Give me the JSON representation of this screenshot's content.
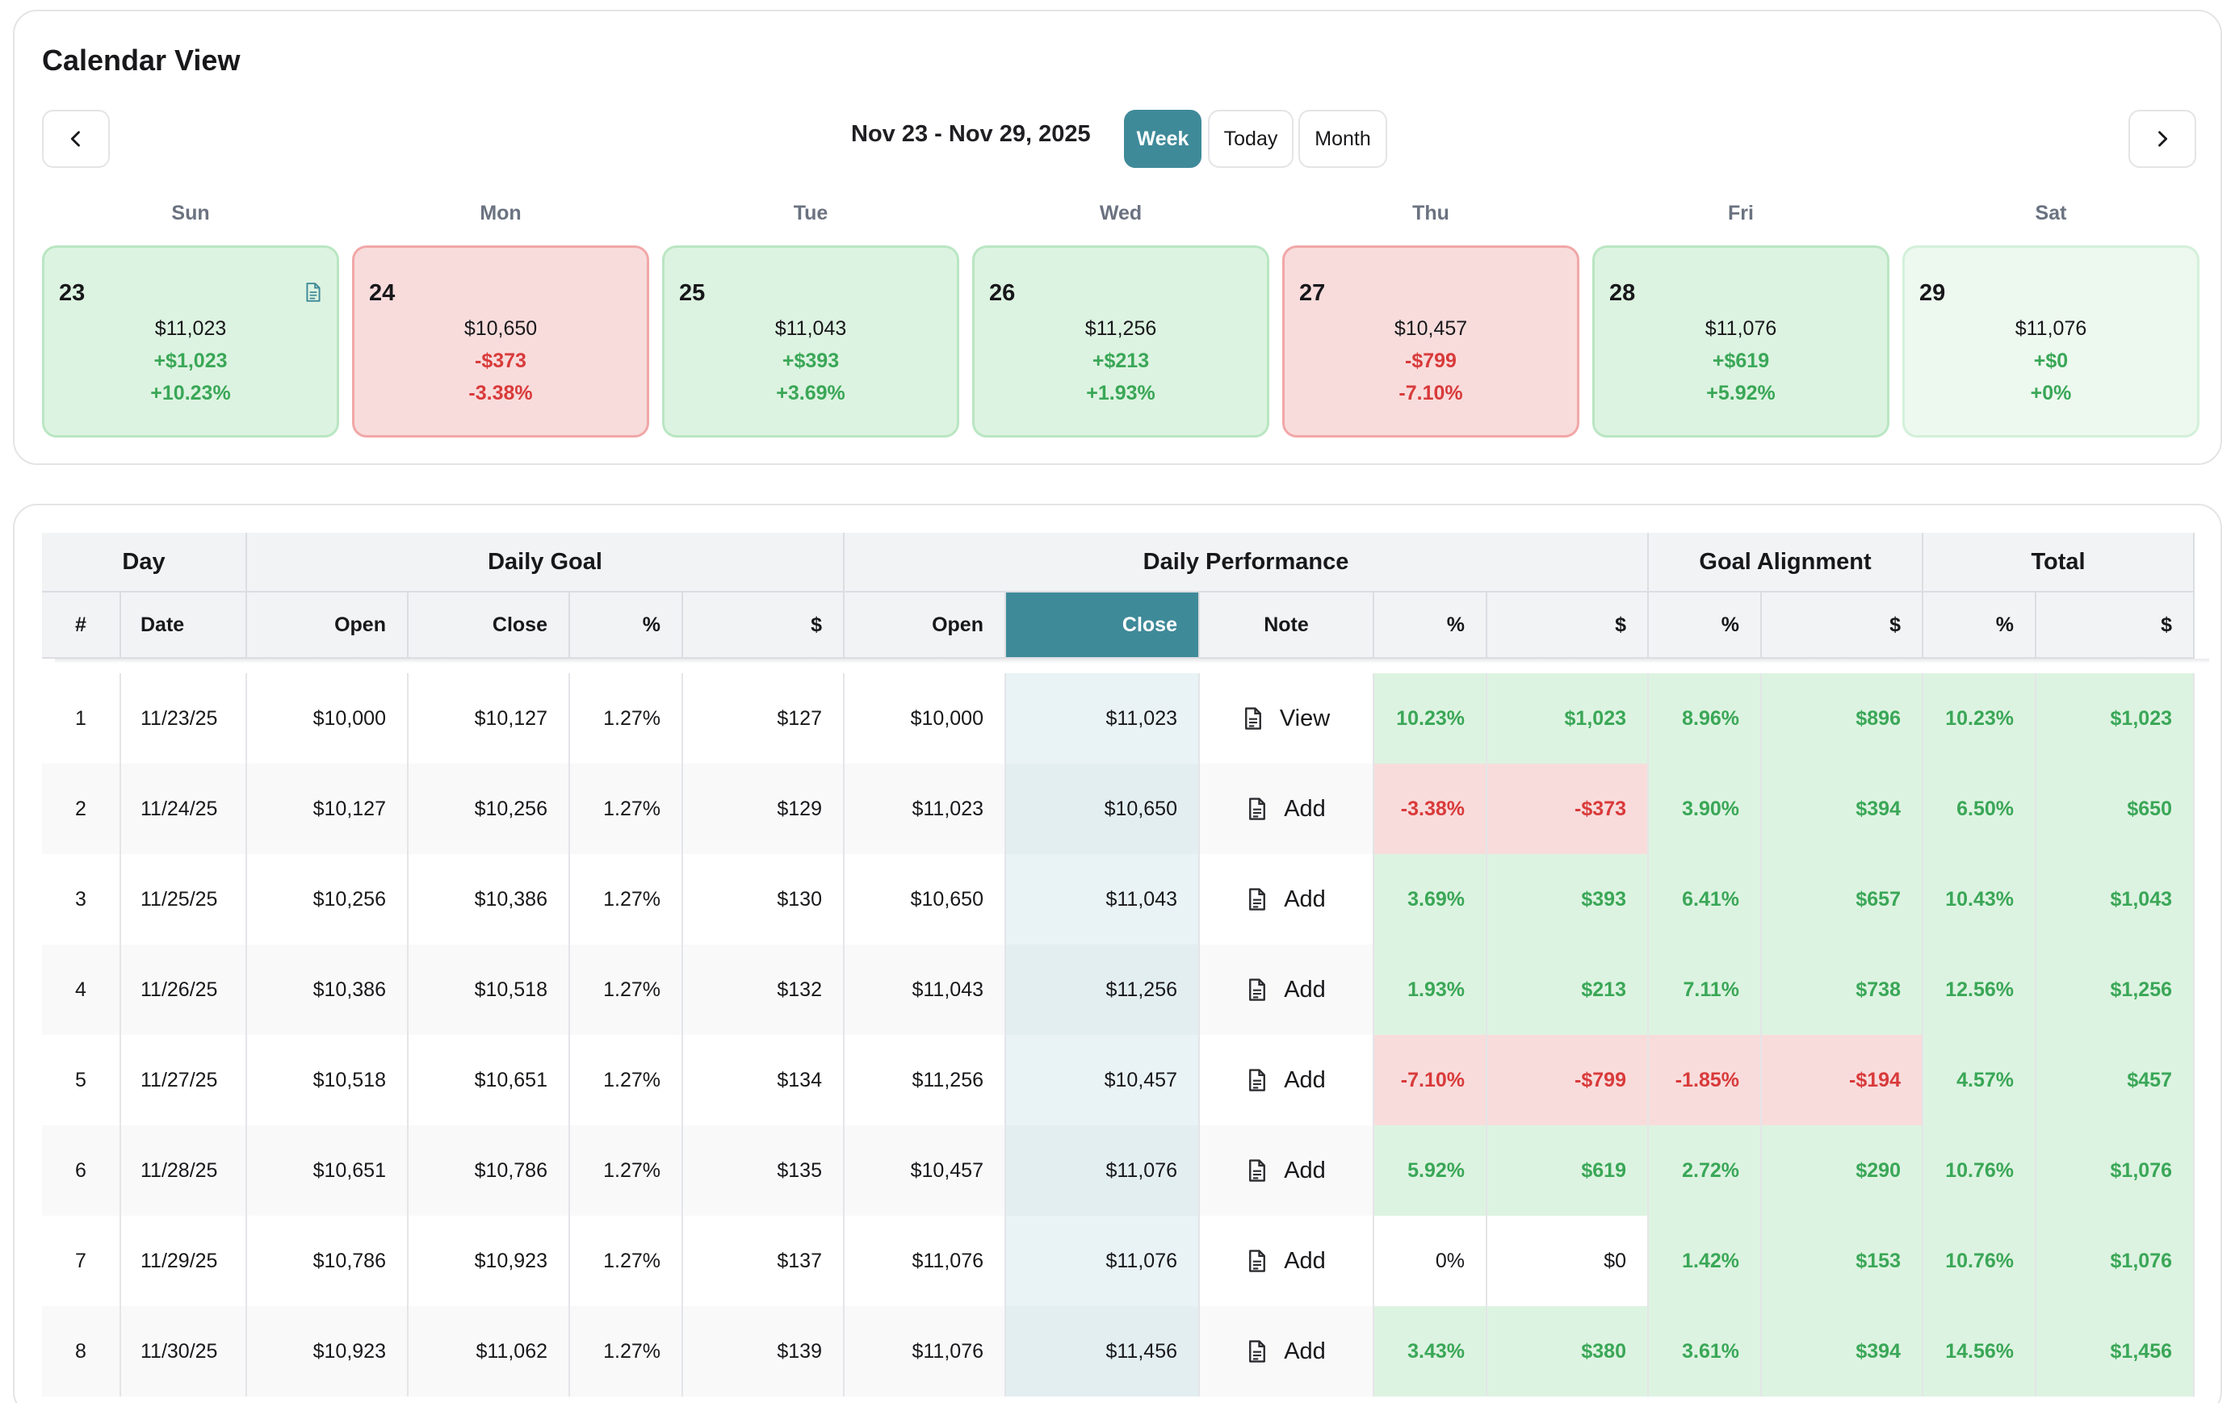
{
  "calendar": {
    "title": "Calendar View",
    "range_label": "Nov 23 - Nov 29, 2025",
    "view_buttons": {
      "week": "Week",
      "today": "Today",
      "month": "Month"
    },
    "active_view": "Week",
    "prev_icon": "chevron-left-icon",
    "next_icon": "chevron-right-icon",
    "weekdays": [
      "Sun",
      "Mon",
      "Tue",
      "Wed",
      "Thu",
      "Fri",
      "Sat"
    ],
    "days": [
      {
        "num": "23",
        "close": "$11,023",
        "change": "+$1,023",
        "pct": "+10.23%",
        "status": "pos",
        "has_note": true
      },
      {
        "num": "24",
        "close": "$10,650",
        "change": "-$373",
        "pct": "-3.38%",
        "status": "neg",
        "has_note": false
      },
      {
        "num": "25",
        "close": "$11,043",
        "change": "+$393",
        "pct": "+3.69%",
        "status": "pos",
        "has_note": false
      },
      {
        "num": "26",
        "close": "$11,256",
        "change": "+$213",
        "pct": "+1.93%",
        "status": "pos",
        "has_note": false
      },
      {
        "num": "27",
        "close": "$10,457",
        "change": "-$799",
        "pct": "-7.10%",
        "status": "neg",
        "has_note": false
      },
      {
        "num": "28",
        "close": "$11,076",
        "change": "+$619",
        "pct": "+5.92%",
        "status": "pos",
        "has_note": false
      },
      {
        "num": "29",
        "close": "$11,076",
        "change": "+$0",
        "pct": "+0%",
        "status": "zero",
        "has_note": false
      }
    ]
  },
  "table": {
    "group_headers": [
      "Day",
      "Daily Goal",
      "Daily Performance",
      "Goal Alignment",
      "Total"
    ],
    "column_headers": [
      "#",
      "Date",
      "Open",
      "Close",
      "%",
      "$",
      "Open",
      "Close",
      "Note",
      "%",
      "$",
      "%",
      "$",
      "%",
      "$"
    ],
    "rows": [
      {
        "n": "1",
        "date": "11/23/25",
        "g_open": "$10,000",
        "g_close": "$10,127",
        "g_pct": "1.27%",
        "g_usd": "$127",
        "p_open": "$10,000",
        "p_close": "$11,023",
        "note": "View",
        "p_pct": "10.23%",
        "p_usd": "$1,023",
        "p_status": "pos",
        "a_pct": "8.96%",
        "a_usd": "$896",
        "a_status": "pos",
        "t_pct": "10.23%",
        "t_usd": "$1,023"
      },
      {
        "n": "2",
        "date": "11/24/25",
        "g_open": "$10,127",
        "g_close": "$10,256",
        "g_pct": "1.27%",
        "g_usd": "$129",
        "p_open": "$11,023",
        "p_close": "$10,650",
        "note": "Add",
        "p_pct": "-3.38%",
        "p_usd": "-$373",
        "p_status": "neg",
        "a_pct": "3.90%",
        "a_usd": "$394",
        "a_status": "pos",
        "t_pct": "6.50%",
        "t_usd": "$650"
      },
      {
        "n": "3",
        "date": "11/25/25",
        "g_open": "$10,256",
        "g_close": "$10,386",
        "g_pct": "1.27%",
        "g_usd": "$130",
        "p_open": "$10,650",
        "p_close": "$11,043",
        "note": "Add",
        "p_pct": "3.69%",
        "p_usd": "$393",
        "p_status": "pos",
        "a_pct": "6.41%",
        "a_usd": "$657",
        "a_status": "pos",
        "t_pct": "10.43%",
        "t_usd": "$1,043"
      },
      {
        "n": "4",
        "date": "11/26/25",
        "g_open": "$10,386",
        "g_close": "$10,518",
        "g_pct": "1.27%",
        "g_usd": "$132",
        "p_open": "$11,043",
        "p_close": "$11,256",
        "note": "Add",
        "p_pct": "1.93%",
        "p_usd": "$213",
        "p_status": "pos",
        "a_pct": "7.11%",
        "a_usd": "$738",
        "a_status": "pos",
        "t_pct": "12.56%",
        "t_usd": "$1,256"
      },
      {
        "n": "5",
        "date": "11/27/25",
        "g_open": "$10,518",
        "g_close": "$10,651",
        "g_pct": "1.27%",
        "g_usd": "$134",
        "p_open": "$11,256",
        "p_close": "$10,457",
        "note": "Add",
        "p_pct": "-7.10%",
        "p_usd": "-$799",
        "p_status": "neg",
        "a_pct": "-1.85%",
        "a_usd": "-$194",
        "a_status": "neg",
        "t_pct": "4.57%",
        "t_usd": "$457"
      },
      {
        "n": "6",
        "date": "11/28/25",
        "g_open": "$10,651",
        "g_close": "$10,786",
        "g_pct": "1.27%",
        "g_usd": "$135",
        "p_open": "$10,457",
        "p_close": "$11,076",
        "note": "Add",
        "p_pct": "5.92%",
        "p_usd": "$619",
        "p_status": "pos",
        "a_pct": "2.72%",
        "a_usd": "$290",
        "a_status": "pos",
        "t_pct": "10.76%",
        "t_usd": "$1,076"
      },
      {
        "n": "7",
        "date": "11/29/25",
        "g_open": "$10,786",
        "g_close": "$10,923",
        "g_pct": "1.27%",
        "g_usd": "$137",
        "p_open": "$11,076",
        "p_close": "$11,076",
        "note": "Add",
        "p_pct": "0%",
        "p_usd": "$0",
        "p_status": "zero",
        "a_pct": "1.42%",
        "a_usd": "$153",
        "a_status": "pos",
        "t_pct": "10.76%",
        "t_usd": "$1,076"
      },
      {
        "n": "8",
        "date": "11/30/25",
        "g_open": "$10,923",
        "g_close": "$11,062",
        "g_pct": "1.27%",
        "g_usd": "$139",
        "p_open": "$11,076",
        "p_close": "$11,456",
        "note": "Add",
        "p_pct": "3.43%",
        "p_usd": "$380",
        "p_status": "pos",
        "a_pct": "3.61%",
        "a_usd": "$394",
        "a_status": "pos",
        "t_pct": "14.56%",
        "t_usd": "$1,456"
      }
    ]
  },
  "colors": {
    "accent": "#3f8a99",
    "positive_bg": "#ddf3e1",
    "positive_text": "#3aa757",
    "negative_bg": "#f8dcdc",
    "negative_text": "#d93a3a"
  }
}
